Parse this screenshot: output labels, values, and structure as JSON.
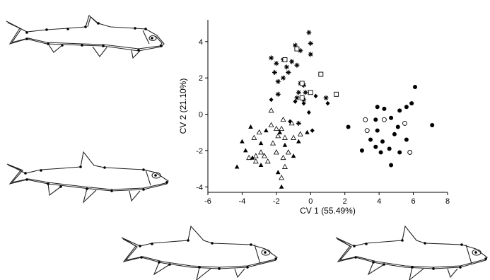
{
  "figure": {
    "fish_outlines": [
      {
        "id": "top-left",
        "icon": "fish-outline-icon"
      },
      {
        "id": "middle-left",
        "icon": "fish-outline-icon"
      },
      {
        "id": "bottom-center",
        "icon": "fish-outline-icon"
      },
      {
        "id": "bottom-right",
        "icon": "fish-outline-icon"
      }
    ]
  },
  "chart_data": {
    "type": "scatter",
    "title": "",
    "xlabel": "CV 1 (55.49%)",
    "ylabel": "CV 2 (21.10%)",
    "xlim": [
      -6,
      8
    ],
    "ylim": [
      -4.3,
      5.2
    ],
    "xticks": [
      -6,
      -4,
      -2,
      0,
      2,
      4,
      6,
      8
    ],
    "yticks": [
      -4,
      -2,
      0,
      2,
      4
    ],
    "xtick_labels": [
      "-6",
      "-4",
      "-2",
      "0",
      "2",
      "4",
      "6",
      "8"
    ],
    "ytick_labels": [
      "-4",
      "-2",
      "0",
      "2",
      "4"
    ],
    "grid": false,
    "legend": false,
    "series": [
      {
        "marker": "asterisk",
        "color": "#000000",
        "points": [
          [
            -0.1,
            4.5
          ],
          [
            0.0,
            3.9
          ],
          [
            -0.9,
            3.8
          ],
          [
            -0.6,
            3.5
          ],
          [
            0.0,
            3.3
          ],
          [
            -2.3,
            3.1
          ],
          [
            -1.6,
            3.0
          ],
          [
            -1.1,
            2.9
          ],
          [
            -2.0,
            2.8
          ],
          [
            -1.4,
            2.6
          ],
          [
            -0.8,
            2.7
          ],
          [
            -2.1,
            2.3
          ],
          [
            -1.3,
            2.3
          ],
          [
            -1.9,
            1.8
          ],
          [
            -1.6,
            2.0
          ],
          [
            -0.6,
            1.7
          ],
          [
            -0.4,
            1.6
          ],
          [
            -0.3,
            1.2
          ],
          [
            -0.7,
            1.2
          ],
          [
            -1.9,
            1.1
          ],
          [
            -0.8,
            0.9
          ],
          [
            0.9,
            0.9
          ],
          [
            -0.4,
            0.8
          ],
          [
            -0.7,
            -0.5
          ]
        ]
      },
      {
        "marker": "open-square",
        "color": "#000000",
        "points": [
          [
            -0.8,
            3.6
          ],
          [
            -1.5,
            3.0
          ],
          [
            0.6,
            2.2
          ],
          [
            -0.5,
            1.7
          ],
          [
            0.0,
            1.2
          ],
          [
            1.5,
            1.1
          ],
          [
            -0.5,
            0.9
          ]
        ]
      },
      {
        "marker": "filled-diamond",
        "color": "#000000",
        "points": [
          [
            -2.3,
            0.8
          ],
          [
            0.3,
            1.0
          ],
          [
            1.0,
            0.6
          ],
          [
            -0.9,
            0.7
          ],
          [
            -0.4,
            0.6
          ],
          [
            -0.1,
            0.1
          ],
          [
            -1.2,
            -0.4
          ],
          [
            0.1,
            -0.9
          ]
        ]
      },
      {
        "marker": "open-triangle",
        "color": "#000000",
        "points": [
          [
            -2.3,
            0.2
          ],
          [
            -1.6,
            -0.3
          ],
          [
            -2.3,
            -0.6
          ],
          [
            -1.1,
            -0.5
          ],
          [
            -1.7,
            -0.8
          ],
          [
            -2.0,
            -0.8
          ],
          [
            -3.0,
            -1.0
          ],
          [
            -3.3,
            -1.3
          ],
          [
            -1.9,
            -1.2
          ],
          [
            -1.5,
            -1.3
          ],
          [
            -1.0,
            -1.3
          ],
          [
            -0.6,
            -1.1
          ],
          [
            -2.2,
            -1.6
          ],
          [
            -2.9,
            -2.1
          ],
          [
            -2.7,
            -2.3
          ],
          [
            -1.3,
            -2.1
          ],
          [
            -2.0,
            -2.1
          ],
          [
            -3.2,
            -2.3
          ],
          [
            -1.6,
            -2.4
          ],
          [
            -2.5,
            -2.6
          ],
          [
            -3.2,
            -2.6
          ],
          [
            -3.6,
            -2.4
          ],
          [
            -1.5,
            -2.9
          ],
          [
            -1.7,
            -3.5
          ]
        ]
      },
      {
        "marker": "filled-triangle",
        "color": "#000000",
        "points": [
          [
            -3.5,
            -0.7
          ],
          [
            -2.6,
            -0.9
          ],
          [
            -1.8,
            -1.0
          ],
          [
            -0.7,
            -1.5
          ],
          [
            -0.2,
            -1.0
          ],
          [
            -4.0,
            -1.5
          ],
          [
            -2.9,
            -1.6
          ],
          [
            -1.5,
            -1.7
          ],
          [
            -3.8,
            -2.0
          ],
          [
            -3.4,
            -2.4
          ],
          [
            -1.0,
            -2.3
          ],
          [
            -2.9,
            -2.8
          ],
          [
            -4.3,
            -2.9
          ],
          [
            -1.9,
            -3.2
          ],
          [
            -1.7,
            -4.0
          ]
        ]
      },
      {
        "marker": "filled-circle",
        "color": "#000000",
        "points": [
          [
            6.1,
            1.5
          ],
          [
            5.9,
            0.6
          ],
          [
            3.9,
            0.4
          ],
          [
            4.3,
            0.3
          ],
          [
            5.2,
            0.2
          ],
          [
            5.6,
            0.4
          ],
          [
            3.8,
            -0.3
          ],
          [
            4.7,
            -0.2
          ],
          [
            7.1,
            -0.6
          ],
          [
            5.1,
            -0.7
          ],
          [
            2.2,
            -0.7
          ],
          [
            3.9,
            -0.9
          ],
          [
            4.9,
            -1.1
          ],
          [
            3.5,
            -1.4
          ],
          [
            4.2,
            -1.5
          ],
          [
            5.6,
            -1.4
          ],
          [
            3.8,
            -1.8
          ],
          [
            4.6,
            -1.9
          ],
          [
            3.0,
            -2.0
          ],
          [
            4.1,
            -2.1
          ],
          [
            5.2,
            -2.1
          ],
          [
            4.7,
            -2.8
          ]
        ]
      },
      {
        "marker": "open-circle",
        "color": "#000000",
        "points": [
          [
            3.2,
            -0.3
          ],
          [
            4.3,
            -0.3
          ],
          [
            5.5,
            -0.5
          ],
          [
            3.3,
            -0.9
          ],
          [
            5.8,
            -2.1
          ]
        ]
      }
    ]
  }
}
